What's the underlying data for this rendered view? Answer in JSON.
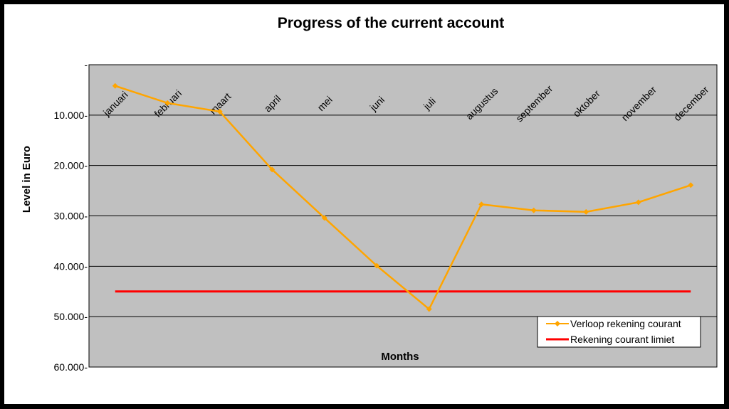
{
  "chart_data": {
    "type": "line",
    "title": "Progress of the current account",
    "xlabel": "Months",
    "ylabel": "Level in Euro",
    "y_axis_inverted": true,
    "ylim": [
      0,
      60000
    ],
    "y_ticks": [
      {
        "value": 0,
        "label": "-"
      },
      {
        "value": 10000,
        "label": "10.000-"
      },
      {
        "value": 20000,
        "label": "20.000-"
      },
      {
        "value": 30000,
        "label": "30.000-"
      },
      {
        "value": 40000,
        "label": "40.000-"
      },
      {
        "value": 50000,
        "label": "50.000-"
      },
      {
        "value": 60000,
        "label": "60.000-"
      }
    ],
    "categories": [
      "januari",
      "februari",
      "maart",
      "april",
      "mei",
      "juni",
      "juli",
      "augustus",
      "september",
      "oktober",
      "november",
      "december"
    ],
    "grid": true,
    "legend_position": "bottom-right",
    "series": [
      {
        "name": "Verloop rekening courant",
        "color": "#FFA500",
        "marker": "diamond",
        "values": [
          4200,
          7600,
          9300,
          20800,
          30400,
          39900,
          48500,
          27700,
          28900,
          29200,
          27300,
          23900
        ]
      },
      {
        "name": "Rekening courant limiet",
        "color": "#FF0000",
        "marker": "none",
        "values": [
          45000,
          45000,
          45000,
          45000,
          45000,
          45000,
          45000,
          45000,
          45000,
          45000,
          45000,
          45000
        ]
      }
    ],
    "colors": {
      "plot_background": "#C0C0C0",
      "gridline": "#000000",
      "frame": "#000000"
    }
  }
}
